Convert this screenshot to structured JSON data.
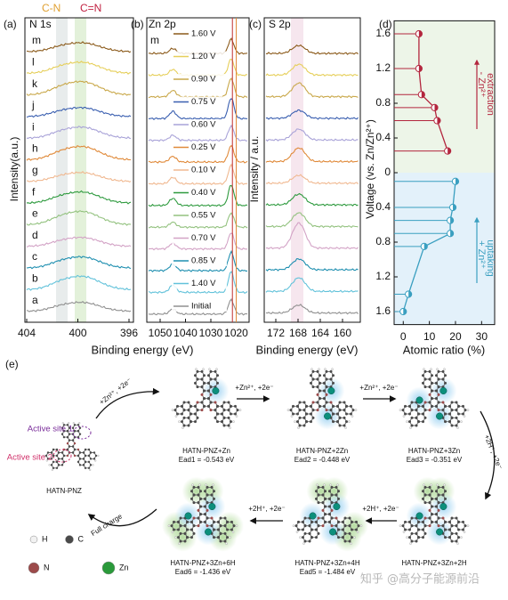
{
  "figure": {
    "x_label": "Binding energy (eV)",
    "trace_colors": [
      "#8b5a1a",
      "#e6cf5a",
      "#c9a84a",
      "#3a5fb0",
      "#a9a3d8",
      "#e08a3a",
      "#f0b890",
      "#2e9a3e",
      "#93c27f",
      "#d3a3c6",
      "#1f8fb0",
      "#62c2da",
      "#909090"
    ],
    "panel_a": {
      "label": "(a)",
      "title": "N 1s",
      "peak_labels": [
        "C-N",
        "C=N"
      ],
      "y_label": "Intensity(a.u.)",
      "trace_labels": [
        "m",
        "l",
        "k",
        "j",
        "i",
        "h",
        "g",
        "f",
        "e",
        "d",
        "c",
        "b",
        "a"
      ],
      "xticks": [
        404,
        400,
        396
      ]
    },
    "panel_b": {
      "label": "(b)",
      "title": "Zn 2p",
      "trace_label": "m",
      "voltage_labels": [
        "1.60 V",
        "1.20 V",
        "0.90 V",
        "0.75 V",
        "0.60 V",
        "0.25 V",
        "0.10 V",
        "0.40 V",
        "0.55 V",
        "0.70 V",
        "0.85 V",
        "1.40 V",
        "Initial"
      ],
      "xticks": [
        1050,
        1040,
        1030,
        1020
      ]
    },
    "panel_c": {
      "label": "(c)",
      "title": "S 2p",
      "y_label": "Intensity / a.u.",
      "xticks": [
        172,
        168,
        164,
        160
      ]
    },
    "panel_e": {
      "label": "(e)",
      "structures": [
        {
          "name": "HATN-PNZ"
        },
        {
          "name": "HATN-PNZ+Zn",
          "energy": "Ead1 = -0.543 eV"
        },
        {
          "name": "HATN-PNZ+2Zn",
          "energy": "Ead2 = -0.448 eV"
        },
        {
          "name": "HATN-PNZ+3Zn",
          "energy": "Ead3 = -0.351 eV"
        },
        {
          "name": "HATN-PNZ+3Zn+2H"
        },
        {
          "name": "HATN-PNZ+3Zn+4H",
          "energy": "Ead5 = -1.484 eV"
        },
        {
          "name": "HATN-PNZ+3Zn+6H",
          "energy": "Ead6 = -1.436 eV"
        }
      ],
      "steps": [
        "+Zn²⁺, +2e⁻",
        "+Zn²⁺, +2e⁻",
        "+Zn²⁺, +2e⁻",
        "+2H⁺, +2e⁻",
        "+2H⁺, +2e⁻",
        "+2H⁺, +2e⁻",
        "Full charge"
      ],
      "active_sites": [
        "Active site 1",
        "Active site 2"
      ],
      "legend": [
        "H",
        "C",
        "N",
        "Zn"
      ]
    },
    "watermark": "知乎 @高分子能源前沿"
  },
  "chart_data": {
    "type": "line",
    "label": "(d)",
    "x_label": "Atomic ratio (%)",
    "y_label": "Voltage (vs. Zn/Zn²⁺)",
    "xlim": [
      -3.5,
      35
    ],
    "xticks": [
      0,
      10,
      20,
      30
    ],
    "ylim": [
      0,
      1.75
    ],
    "yticks": [
      0,
      0.4,
      0.8,
      1.2,
      1.6
    ],
    "y2lim": [
      0,
      1.75
    ],
    "y2ticks": [
      0.4,
      0.8,
      1.2,
      1.6
    ],
    "annotations": [
      "extraction",
      "- Zn²⁺",
      "uptaking",
      "+ Zn²⁺"
    ],
    "region_colors": [
      "#edf5e8",
      "#e3f1fa"
    ],
    "series": [
      {
        "color": "#b3263e",
        "x": [
          6,
          6,
          7,
          12,
          13,
          17
        ],
        "values": [
          1.6,
          1.2,
          0.9,
          0.75,
          0.6,
          0.25
        ]
      },
      {
        "color": "#3a9fc0",
        "axis": "y2",
        "x": [
          20,
          19,
          18,
          18,
          8,
          2,
          0
        ],
        "values": [
          0.1,
          0.4,
          0.55,
          0.7,
          0.85,
          1.4,
          1.6
        ]
      }
    ]
  }
}
